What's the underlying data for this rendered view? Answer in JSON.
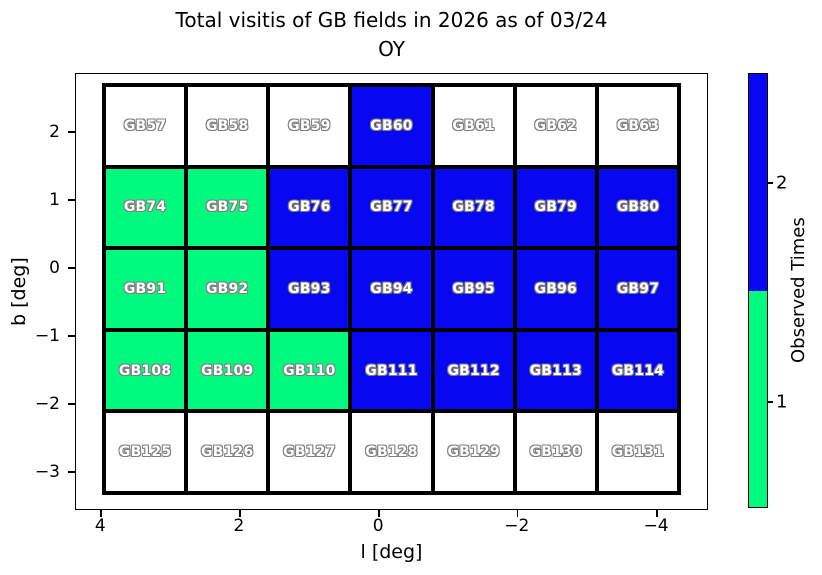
{
  "title": {
    "line1": "Total visitis of GB fields in 2026 as of 03/24",
    "line2": "OY"
  },
  "axes": {
    "xlabel": "l [deg]",
    "ylabel": "b [deg]"
  },
  "colorbar": {
    "label": "Observed Times",
    "ticks": [
      {
        "label": "2",
        "pos": 0.253
      },
      {
        "label": "1",
        "pos": 0.756
      }
    ],
    "segments": [
      {
        "color": "#0707f2",
        "from": 0.0,
        "to": 0.5
      },
      {
        "color": "#00fa7d",
        "from": 0.5,
        "to": 1.0
      }
    ]
  },
  "colors": {
    "observed_0": "#ffffff",
    "observed_1": "#00fa7d",
    "observed_2": "#0707f2",
    "cell_text": "#ffffff",
    "cell_text_outline": "#7f7f7f",
    "border": "#000000"
  },
  "chart_data": {
    "type": "heatmap",
    "title": "Total visitis of GB fields in 2026 as of 03/24 OY",
    "xlabel": "l [deg]",
    "ylabel": "b [deg]",
    "colorbar_label": "Observed Times",
    "colorbar_tick_values": [
      2,
      1
    ],
    "x_tick_labels": [
      "4",
      "2",
      "0",
      "−2",
      "−4"
    ],
    "y_tick_labels": [
      "2",
      "1",
      "0",
      "−1",
      "−2",
      "−3"
    ],
    "x_tick_pos": [
      0.04,
      0.259,
      0.479,
      0.698,
      0.918
    ],
    "y_tick_pos": [
      0.135,
      0.291,
      0.446,
      0.602,
      0.757,
      0.913
    ],
    "x_axis_inverted": true,
    "grid_shape": {
      "rows": 5,
      "cols": 7
    },
    "value_colors": {
      "0": "#ffffff",
      "1": "#00fa7d",
      "2": "#0707f2"
    },
    "value_meaning": {
      "0": "not observed",
      "1": "observed 1 time",
      "2": "observed 2 times"
    },
    "rows": [
      {
        "cells": [
          {
            "label": "GB57",
            "value": 0
          },
          {
            "label": "GB58",
            "value": 0
          },
          {
            "label": "GB59",
            "value": 0
          },
          {
            "label": "GB60",
            "value": 2
          },
          {
            "label": "GB61",
            "value": 0
          },
          {
            "label": "GB62",
            "value": 0
          },
          {
            "label": "GB63",
            "value": 0
          }
        ]
      },
      {
        "cells": [
          {
            "label": "GB74",
            "value": 1
          },
          {
            "label": "GB75",
            "value": 1
          },
          {
            "label": "GB76",
            "value": 2
          },
          {
            "label": "GB77",
            "value": 2
          },
          {
            "label": "GB78",
            "value": 2
          },
          {
            "label": "GB79",
            "value": 2
          },
          {
            "label": "GB80",
            "value": 2
          }
        ]
      },
      {
        "cells": [
          {
            "label": "GB91",
            "value": 1
          },
          {
            "label": "GB92",
            "value": 1
          },
          {
            "label": "GB93",
            "value": 2
          },
          {
            "label": "GB94",
            "value": 2
          },
          {
            "label": "GB95",
            "value": 2
          },
          {
            "label": "GB96",
            "value": 2
          },
          {
            "label": "GB97",
            "value": 2
          }
        ]
      },
      {
        "cells": [
          {
            "label": "GB108",
            "value": 1
          },
          {
            "label": "GB109",
            "value": 1
          },
          {
            "label": "GB110",
            "value": 1
          },
          {
            "label": "GB111",
            "value": 2
          },
          {
            "label": "GB112",
            "value": 2
          },
          {
            "label": "GB113",
            "value": 2
          },
          {
            "label": "GB114",
            "value": 2
          }
        ]
      },
      {
        "cells": [
          {
            "label": "GB125",
            "value": 0
          },
          {
            "label": "GB126",
            "value": 0
          },
          {
            "label": "GB127",
            "value": 0
          },
          {
            "label": "GB128",
            "value": 0
          },
          {
            "label": "GB129",
            "value": 0
          },
          {
            "label": "GB130",
            "value": 0
          },
          {
            "label": "GB131",
            "value": 0
          }
        ]
      }
    ]
  }
}
